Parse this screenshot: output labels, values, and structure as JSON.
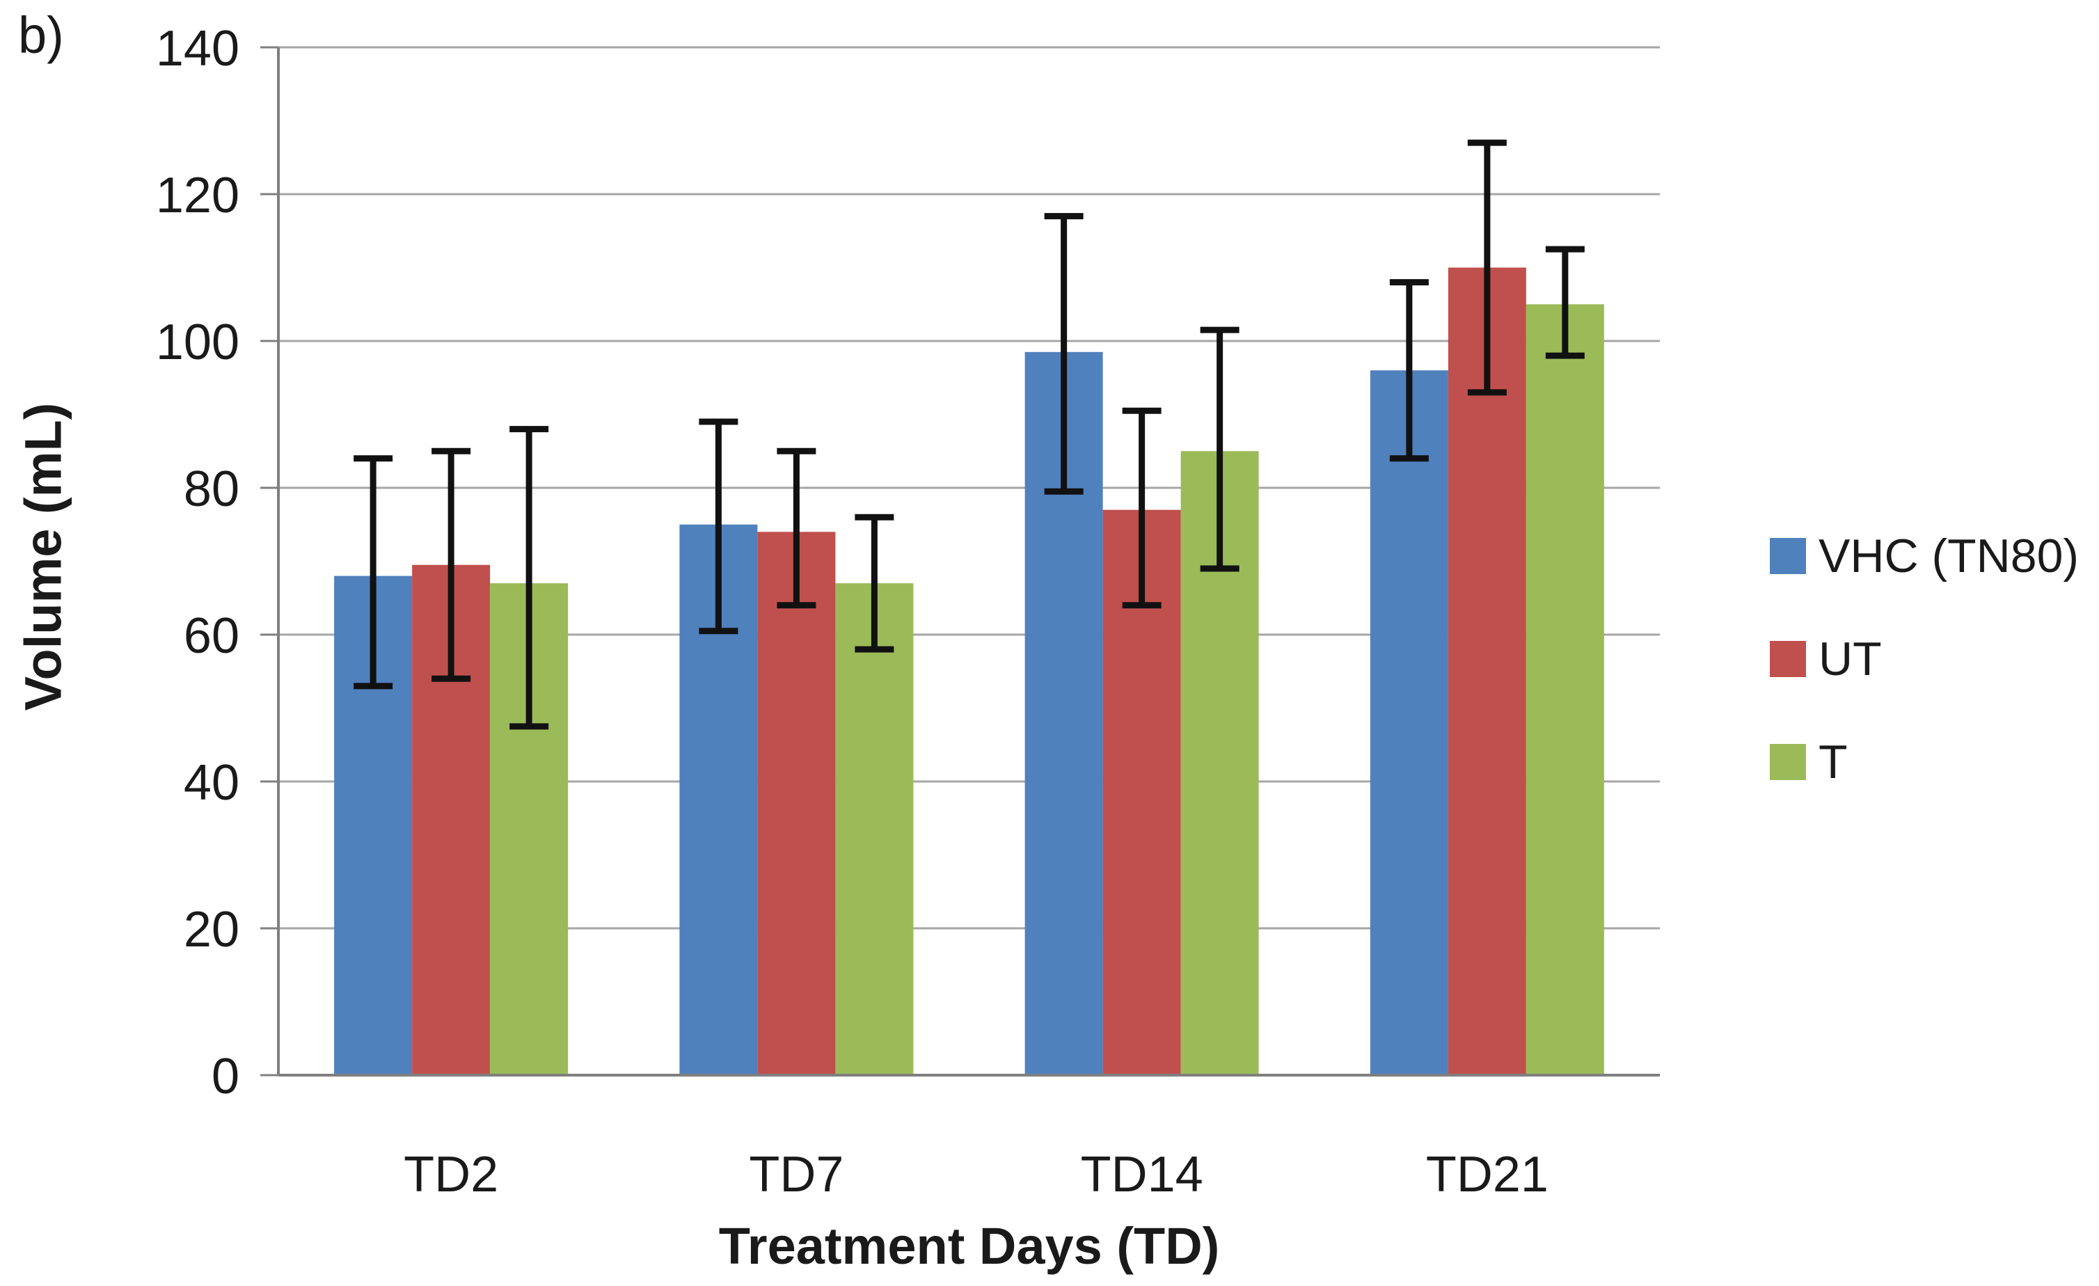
{
  "figure_label": "b)",
  "colors": {
    "background": "#FFFFFF",
    "gridline": "#A6A6A6",
    "axis": "#7F7F7F",
    "error_bar": "#111111",
    "text": "#1A1A1A"
  },
  "chart_data": {
    "type": "bar",
    "title": "",
    "xlabel": "Treatment Days (TD)",
    "ylabel": "Volume (mL)",
    "ylim": [
      0,
      140
    ],
    "yticks": [
      0,
      20,
      40,
      60,
      80,
      100,
      120,
      140
    ],
    "grid": "horizontal",
    "legend_position": "right",
    "categories": [
      "TD2",
      "TD7",
      "TD14",
      "TD21"
    ],
    "series": [
      {
        "name": "VHC (TN80)",
        "color": "#4F81BD",
        "values": [
          68,
          75,
          98.5,
          96
        ],
        "error_low": [
          53,
          60.5,
          79.5,
          84
        ],
        "error_high": [
          84,
          89,
          117,
          108
        ]
      },
      {
        "name": "UT",
        "color": "#C0504D",
        "values": [
          69.5,
          74,
          77,
          110
        ],
        "error_low": [
          54,
          64,
          64,
          93
        ],
        "error_high": [
          85,
          85,
          90.5,
          127
        ]
      },
      {
        "name": "T",
        "color": "#9BBB59",
        "values": [
          67,
          67,
          85,
          105
        ],
        "error_low": [
          47.5,
          58,
          69,
          98
        ],
        "error_high": [
          88,
          76,
          101.5,
          112.5
        ]
      }
    ]
  }
}
